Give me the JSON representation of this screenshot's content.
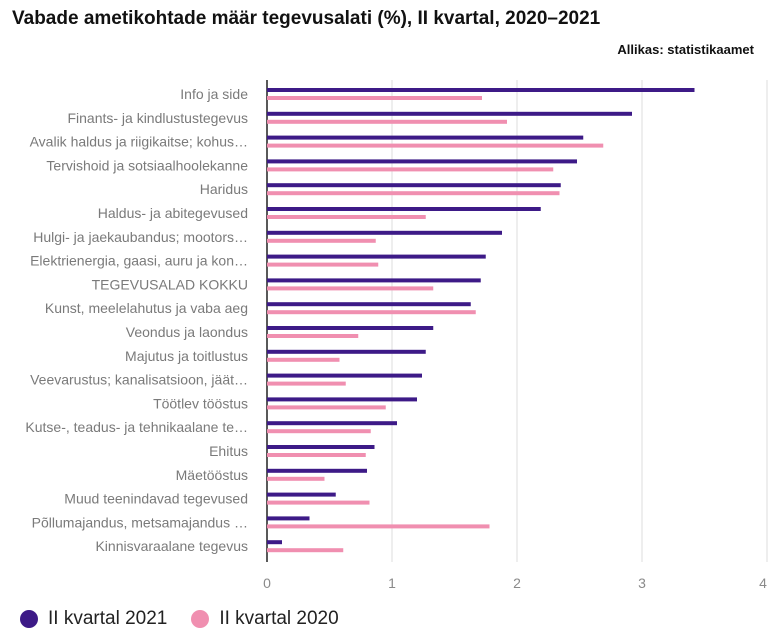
{
  "chart_data": {
    "type": "bar",
    "orientation": "horizontal",
    "title": "Vabade ametikohtade määr tegevusalati (%), II kvartal, 2020–2021",
    "source": "Allikas: statistikaamet",
    "categories": [
      "Info ja side",
      "Finants- ja kindlustustegevus",
      "Avalik haldus ja riigikaitse; kohus…",
      "Tervishoid ja sotsiaalhoolekanne",
      "Haridus",
      "Haldus- ja abitegevused",
      "Hulgi- ja jaekaubandus; mootors…",
      "Elektrienergia, gaasi, auru ja kon…",
      "TEGEVUSALAD KOKKU",
      "Kunst, meelelahutus ja vaba aeg",
      "Veondus ja laondus",
      "Majutus ja toitlustus",
      "Veevarustus; kanalisatsioon, jäät…",
      "Töötlev tööstus",
      "Kutse-, teadus- ja tehnikaalane te…",
      "Ehitus",
      "Mäetööstus",
      "Muud teenindavad tegevused",
      "Põllumajandus, metsamajandus …",
      "Kinnisvaraalane tegevus"
    ],
    "series": [
      {
        "name": "II kvartal 2021",
        "color": "#3d1a87",
        "values": [
          3.42,
          2.92,
          2.53,
          2.48,
          2.35,
          2.19,
          1.88,
          1.75,
          1.71,
          1.63,
          1.33,
          1.27,
          1.24,
          1.2,
          1.04,
          0.86,
          0.8,
          0.55,
          0.34,
          0.12
        ]
      },
      {
        "name": "II kvartal 2020",
        "color": "#f08fb0",
        "values": [
          1.72,
          1.92,
          2.69,
          2.29,
          2.34,
          1.27,
          0.87,
          0.89,
          1.33,
          1.67,
          0.73,
          0.58,
          0.63,
          0.95,
          0.83,
          0.79,
          0.46,
          0.82,
          1.78,
          0.61
        ]
      }
    ],
    "xlim": [
      0,
      4
    ],
    "xticks": [
      "0",
      "1",
      "2",
      "3",
      "4"
    ],
    "grid": true,
    "legend": "bottom-left"
  }
}
